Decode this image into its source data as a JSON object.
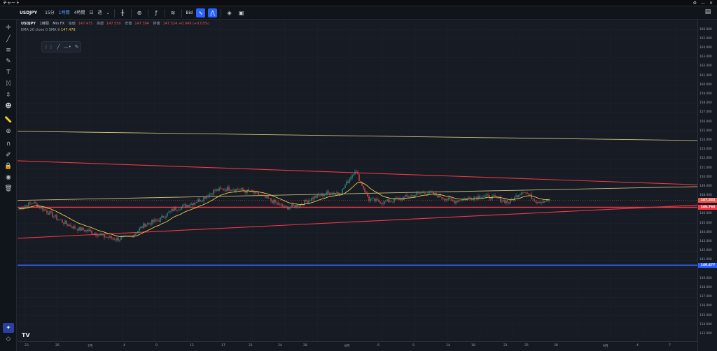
{
  "window": {
    "title": "チャート"
  },
  "toolbar": {
    "symbol": "USDJPY",
    "timeframes": [
      "15分",
      "1時間",
      "4時間",
      "日",
      "週"
    ],
    "active_timeframe_index": 1,
    "price_type": "Bid"
  },
  "legend": {
    "symbol": "USDJPY",
    "interval": "1時間",
    "source": "Min FX",
    "open_label": "始値",
    "open": "147.475",
    "high_label": "高値",
    "high": "147.550",
    "low_label": "安値",
    "low": "147.394",
    "close_label": "終値",
    "close": "147.524 +0.049 (+0.03%)",
    "indicator": "EMA 20 close 0 SMA 9",
    "indicator_value": "147.478"
  },
  "price_axis": {
    "labels": [
      "166.000",
      "165.000",
      "164.000",
      "163.000",
      "162.000",
      "161.000",
      "160.000",
      "159.000",
      "158.000",
      "157.000",
      "156.000",
      "155.000",
      "154.000",
      "153.000",
      "152.000",
      "151.000",
      "150.000",
      "149.000",
      "148.000",
      "146.000",
      "145.000",
      "144.000",
      "143.000",
      "142.000",
      "141.000",
      "139.000",
      "138.000",
      "137.000",
      "136.000",
      "135.000",
      "134.000",
      "133.000"
    ],
    "current_price": "147.524",
    "line_price_1": "146.764",
    "line_price_2": "140.477"
  },
  "time_axis": {
    "labels": [
      "23",
      "26",
      "7月",
      "4",
      "9",
      "12",
      "17",
      "21",
      "24",
      "28",
      "8月",
      "6",
      "9",
      "14",
      "18",
      "21",
      "25",
      "28",
      "9月",
      "4",
      "7"
    ]
  },
  "colors": {
    "up": "#26a69a",
    "down": "#ef5350",
    "ema": "#f2c94c",
    "red_line": "#f23645",
    "yellow_line": "#c9c07a",
    "blue_line": "#2962ff"
  },
  "chart_data": {
    "type": "line",
    "title": "",
    "series": [
      {
        "name": "USDJPY",
        "x": [
          0,
          20,
          40,
          60,
          80,
          100,
          120,
          140,
          160,
          180,
          200,
          220,
          240,
          260,
          280,
          300,
          320,
          340,
          360,
          380,
          400,
          420,
          440,
          460,
          480,
          500,
          520,
          540,
          560,
          580,
          600,
          620,
          640,
          660,
          680,
          700,
          720,
          740,
          760
        ],
        "values": [
          146.6,
          147.3,
          146.3,
          145.3,
          144.5,
          144.2,
          143.6,
          143.3,
          143.6,
          144.9,
          145.4,
          146.5,
          147.0,
          147.6,
          148.6,
          148.8,
          148.6,
          148.2,
          147.5,
          146.7,
          147.0,
          147.8,
          148.3,
          148.4,
          150.8,
          147.6,
          147.3,
          147.6,
          148.0,
          148.4,
          148.0,
          147.4,
          147.7,
          148.0,
          147.8,
          147.3,
          148.6,
          147.4,
          147.5
        ]
      }
    ],
    "ylim": [
      133,
      166.5
    ]
  }
}
